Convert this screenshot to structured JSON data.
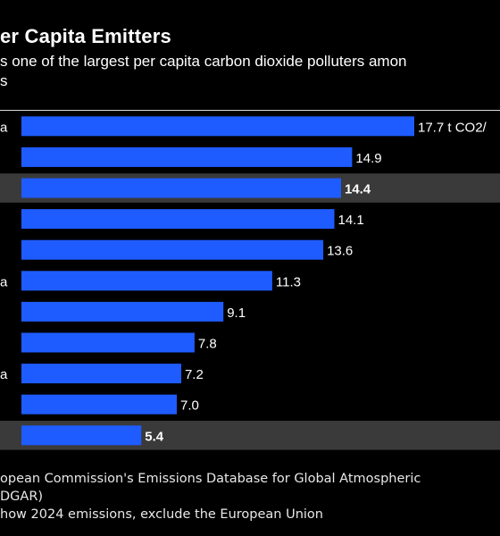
{
  "header": {
    "title": "er Capita Emitters",
    "subtitle_line1": "s one of the largest per capita carbon dioxide polluters amon",
    "subtitle_line2": "s"
  },
  "footer": {
    "source_line1": "opean Commission's Emissions Database for Global Atmospheric",
    "source_line2": "DGAR)",
    "note": "how 2024 emissions, exclude the European Union"
  },
  "colors": {
    "background": "#000000",
    "bar": "#1f5cff",
    "highlight_row": "#3a3a3a",
    "text": "#ffffff"
  },
  "chart_data": {
    "type": "bar",
    "orientation": "horizontal",
    "categories": [
      "a",
      "",
      "",
      "",
      "",
      "a",
      "",
      "",
      "a",
      "",
      ""
    ],
    "values": [
      17.7,
      14.9,
      14.4,
      14.1,
      13.6,
      11.3,
      9.1,
      7.8,
      7.2,
      7.0,
      5.4
    ],
    "value_labels": [
      "17.7 t CO2/",
      "14.9",
      "14.4",
      "14.1",
      "13.6",
      "11.3",
      "9.1",
      "7.8",
      "7.2",
      "7.0",
      "5.4"
    ],
    "highlighted": [
      false,
      false,
      true,
      false,
      false,
      false,
      false,
      false,
      false,
      false,
      true
    ],
    "xlim": [
      0,
      17.7
    ],
    "grid": false,
    "legend": "none"
  }
}
